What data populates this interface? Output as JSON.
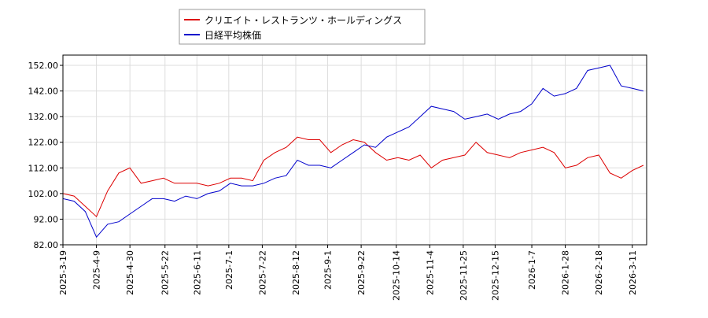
{
  "chart_data": {
    "type": "line",
    "x": [
      "2025-3-19",
      "2025-3-26",
      "2025-4-2",
      "2025-4-9",
      "2025-4-16",
      "2025-4-23",
      "2025-4-30",
      "2025-5-7",
      "2025-5-14",
      "2025-5-21",
      "2025-5-28",
      "2025-6-4",
      "2025-6-11",
      "2025-6-18",
      "2025-6-25",
      "2025-7-2",
      "2025-7-9",
      "2025-7-16",
      "2025-7-23",
      "2025-7-30",
      "2025-8-6",
      "2025-8-13",
      "2025-8-20",
      "2025-8-27",
      "2025-9-3",
      "2025-9-10",
      "2025-9-17",
      "2025-9-24",
      "2025-10-1",
      "2025-10-8",
      "2025-10-15",
      "2025-10-22",
      "2025-10-29",
      "2025-11-5",
      "2025-11-12",
      "2025-11-19",
      "2025-11-26",
      "2025-12-3",
      "2025-12-10",
      "2025-12-17",
      "2025-12-24",
      "2025-12-31",
      "2026-1-7",
      "2026-1-14",
      "2026-1-21",
      "2026-1-28",
      "2026-2-4",
      "2026-2-11",
      "2026-2-18",
      "2026-2-25",
      "2026-3-4",
      "2026-3-11",
      "2026-3-18"
    ],
    "series": [
      {
        "name": "クリエイト・レストランツ・ホールディングス",
        "color": "#dd0000",
        "values": [
          102,
          101,
          97,
          93,
          103,
          110,
          112,
          106,
          107,
          108,
          106,
          106,
          106,
          105,
          106,
          108,
          108,
          107,
          115,
          118,
          120,
          124,
          123,
          123,
          118,
          121,
          123,
          122,
          118,
          115,
          116,
          115,
          117,
          112,
          115,
          116,
          117,
          122,
          118,
          117,
          116,
          118,
          119,
          120,
          118,
          112,
          113,
          116,
          117,
          110,
          108,
          111,
          113
        ]
      },
      {
        "name": "日経平均株価",
        "color": "#0000cc",
        "values": [
          100,
          99,
          95,
          85,
          90,
          91,
          94,
          97,
          100,
          100,
          99,
          101,
          100,
          102,
          103,
          106,
          105,
          105,
          106,
          108,
          109,
          115,
          113,
          113,
          112,
          115,
          118,
          121,
          120,
          124,
          126,
          128,
          132,
          136,
          135,
          134,
          131,
          132,
          133,
          131,
          133,
          134,
          137,
          143,
          140,
          141,
          143,
          150,
          151,
          152,
          144,
          143,
          142
        ]
      }
    ],
    "xlim": [
      "2025-3-19",
      "2026-3-20"
    ],
    "xticks": [
      "2025-3-19",
      "2025-4-9",
      "2025-4-30",
      "2025-5-22",
      "2025-6-11",
      "2025-7-1",
      "2025-7-22",
      "2025-8-12",
      "2025-9-1",
      "2025-9-22",
      "2025-10-14",
      "2025-11-4",
      "2025-11-25",
      "2025-12-15",
      "2026-1-7",
      "2026-1-28",
      "2026-2-18",
      "2026-3-11"
    ],
    "ylim": [
      82,
      156
    ],
    "yticks": [
      {
        "value": 82,
        "label": "82.00"
      },
      {
        "value": 92,
        "label": "92.00"
      },
      {
        "value": 102,
        "label": "102.00"
      },
      {
        "value": 112,
        "label": "112.00"
      },
      {
        "value": 122,
        "label": "122.00"
      },
      {
        "value": 132,
        "label": "132.00"
      },
      {
        "value": 142,
        "label": "142.00"
      },
      {
        "value": 152,
        "label": "152.00"
      }
    ],
    "grid": true,
    "legend": "top-left"
  }
}
